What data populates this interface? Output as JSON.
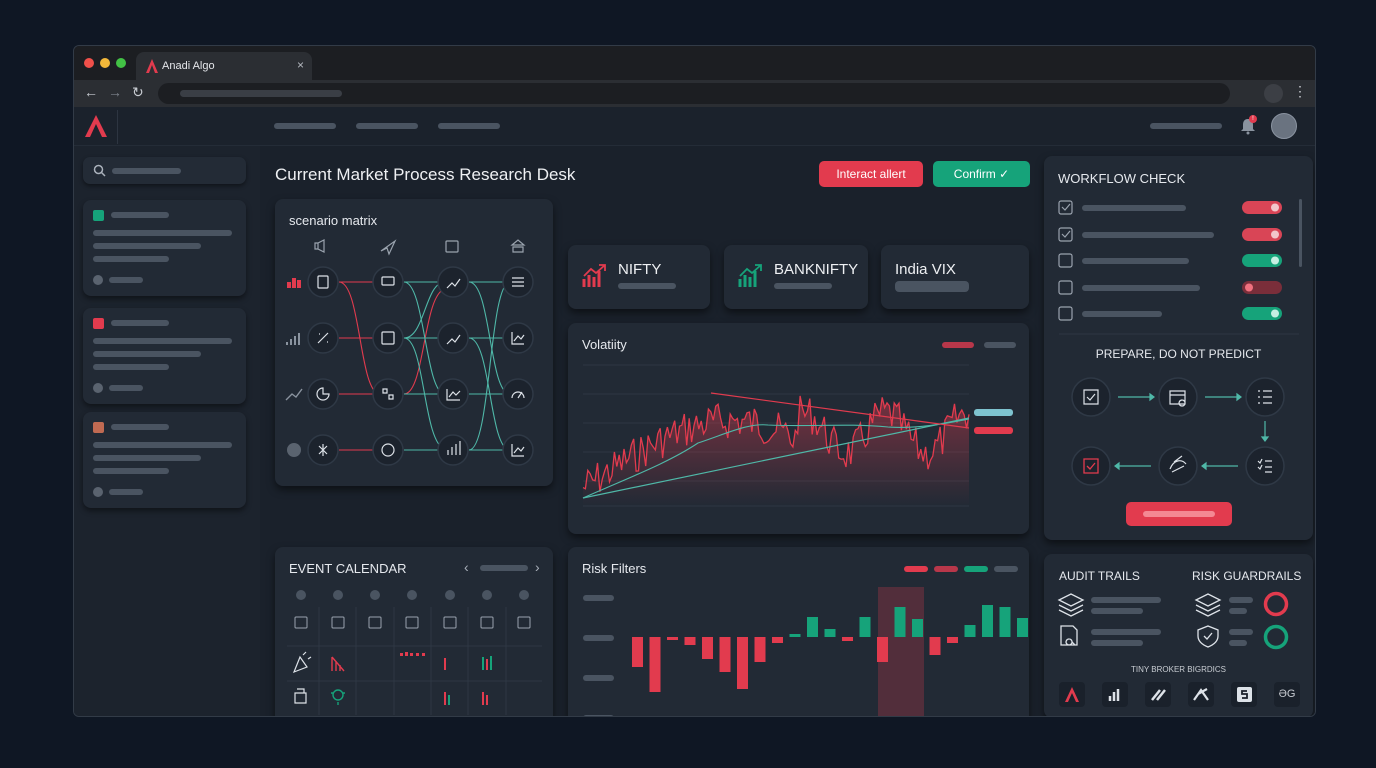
{
  "browser": {
    "tab_title": "Anadi Algo",
    "tab_close": "×",
    "back": "←",
    "forward": "→",
    "reload": "↻",
    "menu": "⋮"
  },
  "header": {
    "notification_badge": "!"
  },
  "page": {
    "title": "Current Market Process Research Desk"
  },
  "actions": {
    "alert_label": "Interact allert",
    "confirm_label": "Confirm ✓"
  },
  "scenario": {
    "title": "scenario matrix"
  },
  "tickers": [
    {
      "name": "NIFTY"
    },
    {
      "name": "BANKNIFTY"
    },
    {
      "name": "India VIX"
    }
  ],
  "volatility": {
    "title": "Volatiity"
  },
  "calendar": {
    "title": "EVENT CALENDAR",
    "prev": "‹",
    "next": "›"
  },
  "risk_filters": {
    "title": "Risk Filters"
  },
  "workflow": {
    "title": "WORKFLOW CHECK",
    "items": [
      {
        "checked": true,
        "toggle": "red"
      },
      {
        "checked": true,
        "toggle": "red"
      },
      {
        "checked": false,
        "toggle": "green"
      },
      {
        "checked": false,
        "toggle": "red-dim"
      },
      {
        "checked": false,
        "toggle": "green"
      }
    ],
    "subtitle": "PREPARE, DO NOT PREDICT"
  },
  "audit": {
    "title": "AUDIT TRAILS"
  },
  "guardrails": {
    "title": "RISK GUARDRAILS"
  },
  "brokers": {
    "title": "TINY BROKER BIGRDICS",
    "last_logo": "ƏG"
  },
  "colors": {
    "red": "#e23b4e",
    "green": "#16a37a",
    "teal": "#4fb8a8",
    "bg": "#1a212b",
    "card": "#222a35"
  }
}
